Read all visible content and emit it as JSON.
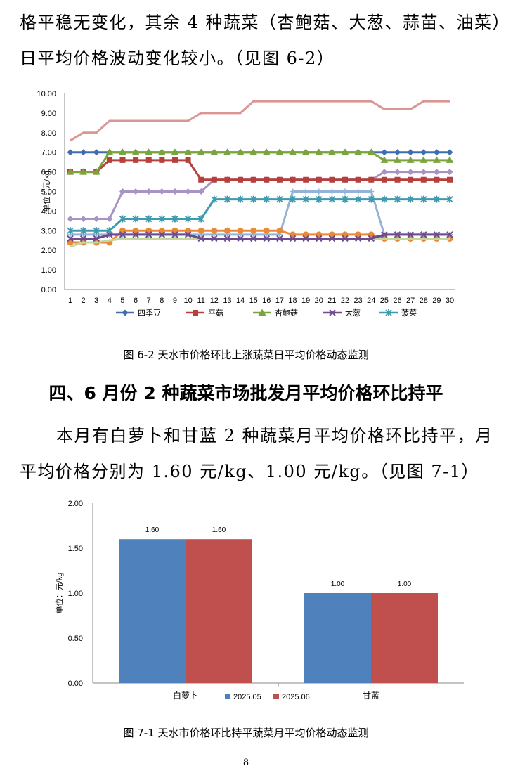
{
  "intro": {
    "line1": "格平稳无变化，其余 4 种蔬菜（杏鲍菇、大葱、蒜苗、油菜）",
    "line2": "日平均价格波动变化较小。（见图 6-2）"
  },
  "figure_62_caption": "图 6-2  天水市价格环比上涨蔬菜日平均价格动态监测",
  "section4": {
    "heading": "四、6 月份 2 种蔬菜市场批发月平均价格环比持平",
    "line1": "本月有白萝卜和甘蓝 2 种蔬菜月平均价格环比持平，月",
    "line2": "平均价格分别为 1.60 元/kg、1.00 元/kg。（见图 7-1）"
  },
  "figure_71_caption": "图 7-1  天水市价格环比持平蔬菜月平均价格动态监测",
  "page_number": "8",
  "chart_data": [
    {
      "type": "line",
      "ylabel": "单位：元/kg",
      "ylim": [
        0,
        10
      ],
      "yticks": [
        "0.00",
        "1.00",
        "2.00",
        "3.00",
        "4.00",
        "5.00",
        "6.00",
        "7.00",
        "8.00",
        "9.00",
        "10.00"
      ],
      "x": [
        1,
        2,
        3,
        4,
        5,
        6,
        7,
        8,
        9,
        10,
        11,
        12,
        13,
        14,
        15,
        16,
        17,
        18,
        19,
        20,
        21,
        22,
        23,
        24,
        25,
        26,
        27,
        28,
        29,
        30
      ],
      "legend_position": "bottom",
      "series": [
        {
          "name": "四季豆",
          "marker": "diamond",
          "color": "#3F6DAF",
          "values": [
            7.0,
            7.0,
            7.0,
            7.0,
            7.0,
            7.0,
            7.0,
            7.0,
            7.0,
            7.0,
            7.0,
            7.0,
            7.0,
            7.0,
            7.0,
            7.0,
            7.0,
            7.0,
            7.0,
            7.0,
            7.0,
            7.0,
            7.0,
            7.0,
            7.0,
            7.0,
            7.0,
            7.0,
            7.0,
            7.0
          ]
        },
        {
          "name": "平菇",
          "marker": "square",
          "color": "#B5403E",
          "values": [
            6.0,
            6.0,
            6.0,
            6.6,
            6.6,
            6.6,
            6.6,
            6.6,
            6.6,
            6.6,
            5.6,
            5.6,
            5.6,
            5.6,
            5.6,
            5.6,
            5.6,
            5.6,
            5.6,
            5.6,
            5.6,
            5.6,
            5.6,
            5.6,
            5.6,
            5.6,
            5.6,
            5.6,
            5.6,
            5.6
          ]
        },
        {
          "name": "杏鲍菇",
          "marker": "triangle",
          "color": "#7CA43E",
          "values": [
            6.0,
            6.0,
            6.0,
            7.0,
            7.0,
            7.0,
            7.0,
            7.0,
            7.0,
            7.0,
            7.0,
            7.0,
            7.0,
            7.0,
            7.0,
            7.0,
            7.0,
            7.0,
            7.0,
            7.0,
            7.0,
            7.0,
            7.0,
            7.0,
            6.6,
            6.6,
            6.6,
            6.6,
            6.6,
            6.6
          ]
        },
        {
          "name": "大葱",
          "marker": "x",
          "color": "#6E4A8E",
          "values": [
            2.6,
            2.6,
            2.6,
            2.8,
            2.8,
            2.8,
            2.8,
            2.8,
            2.8,
            2.8,
            2.6,
            2.6,
            2.6,
            2.6,
            2.6,
            2.6,
            2.6,
            2.6,
            2.6,
            2.6,
            2.6,
            2.6,
            2.6,
            2.6,
            2.8,
            2.8,
            2.8,
            2.8,
            2.8,
            2.8
          ]
        },
        {
          "name": "菠菜",
          "marker": "star",
          "color": "#3E9AAE",
          "values": [
            3.0,
            3.0,
            3.0,
            3.0,
            3.6,
            3.6,
            3.6,
            3.6,
            3.6,
            3.6,
            3.6,
            4.6,
            4.6,
            4.6,
            4.6,
            4.6,
            4.6,
            4.6,
            4.6,
            4.6,
            4.6,
            4.6,
            4.6,
            4.6,
            4.6,
            4.6,
            4.6,
            4.6,
            4.6,
            4.6
          ]
        }
      ],
      "unlabeled_series": [
        {
          "marker": "none",
          "color": "#D99694",
          "values": [
            7.6,
            8.0,
            8.0,
            8.6,
            8.6,
            8.6,
            8.6,
            8.6,
            8.6,
            8.6,
            9.0,
            9.0,
            9.0,
            9.0,
            9.6,
            9.6,
            9.6,
            9.6,
            9.6,
            9.6,
            9.6,
            9.6,
            9.6,
            9.6,
            9.2,
            9.2,
            9.2,
            9.6,
            9.6,
            9.6
          ]
        },
        {
          "marker": "diamond",
          "color": "#A894C4",
          "values": [
            3.6,
            3.6,
            3.6,
            3.6,
            5.0,
            5.0,
            5.0,
            5.0,
            5.0,
            5.0,
            5.0,
            5.6,
            5.6,
            5.6,
            5.6,
            5.6,
            5.6,
            5.6,
            5.6,
            5.6,
            5.6,
            5.6,
            5.6,
            5.6,
            6.0,
            6.0,
            6.0,
            6.0,
            6.0,
            6.0
          ]
        },
        {
          "marker": "plus",
          "color": "#95B3D7",
          "values": [
            2.8,
            2.8,
            2.8,
            2.8,
            2.8,
            2.8,
            2.8,
            2.8,
            2.8,
            2.8,
            2.8,
            2.8,
            2.8,
            2.8,
            2.8,
            2.8,
            2.8,
            5.0,
            5.0,
            5.0,
            5.0,
            5.0,
            5.0,
            5.0,
            2.8,
            2.8,
            2.8,
            2.8,
            2.8,
            2.8
          ]
        },
        {
          "marker": "circle",
          "color": "#E88A3A",
          "values": [
            2.4,
            2.4,
            2.4,
            2.4,
            3.0,
            3.0,
            3.0,
            3.0,
            3.0,
            3.0,
            3.0,
            3.0,
            3.0,
            3.0,
            3.0,
            3.0,
            3.0,
            2.8,
            2.8,
            2.8,
            2.8,
            2.8,
            2.8,
            2.8,
            2.6,
            2.6,
            2.6,
            2.6,
            2.6,
            2.6
          ]
        },
        {
          "marker": "none",
          "color": "#C4D79B",
          "values": [
            2.2,
            2.4,
            2.4,
            2.5,
            2.6,
            2.6,
            2.6,
            2.6,
            2.6,
            2.6,
            2.6,
            2.6,
            2.6,
            2.6,
            2.6,
            2.6,
            2.6,
            2.6,
            2.6,
            2.6,
            2.6,
            2.6,
            2.6,
            2.6,
            2.6,
            2.6,
            2.6,
            2.6,
            2.6,
            2.6
          ]
        }
      ]
    },
    {
      "type": "bar",
      "ylabel": "单位：元/kg",
      "ylim": [
        0,
        2
      ],
      "yticks": [
        "0.00",
        "0.50",
        "1.00",
        "1.50",
        "2.00"
      ],
      "categories": [
        "白萝卜",
        "甘蓝"
      ],
      "legend_position": "bottom",
      "series": [
        {
          "name": "2025.05",
          "color": "#4F81BD",
          "values": [
            1.6,
            1.0
          ],
          "labels": [
            "1.60",
            "1.00"
          ]
        },
        {
          "name": "2025.06.",
          "color": "#C0504D",
          "values": [
            1.6,
            1.0
          ],
          "labels": [
            "1.60",
            "1.00"
          ]
        }
      ]
    }
  ]
}
